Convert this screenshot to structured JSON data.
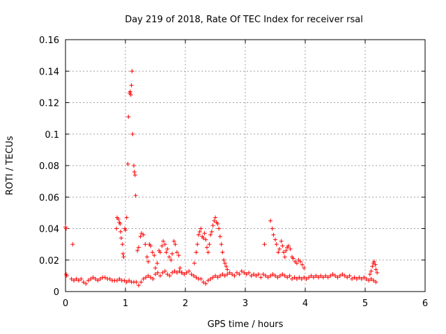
{
  "chart_data": {
    "type": "scatter",
    "title": "Day 219 of 2018, Rate Of TEC Index for receiver rsal",
    "xlabel": "GPS time / hours",
    "ylabel": "ROTI / TECUs",
    "xlim": [
      0,
      6
    ],
    "ylim": [
      0,
      0.16
    ],
    "grid": true,
    "x_ticks": [
      0,
      1,
      2,
      3,
      4,
      5,
      6
    ],
    "x_tick_labels": [
      "0",
      "1",
      "2",
      "3",
      "4",
      "5",
      "6"
    ],
    "y_ticks": [
      0,
      0.02,
      0.04,
      0.06,
      0.08,
      0.1,
      0.12,
      0.14,
      0.16
    ],
    "y_tick_labels": [
      "0",
      "0.02",
      "0.04",
      "0.06",
      "0.08",
      "0.1",
      "0.12",
      "0.14",
      "0.16"
    ],
    "marker": "plus",
    "marker_color": "#ff0000",
    "series": [
      {
        "name": "ROTI",
        "points": [
          [
            0.0,
            0.041
          ],
          [
            0.01,
            0.04
          ],
          [
            0.01,
            0.011
          ],
          [
            0.02,
            0.01
          ],
          [
            0.12,
            0.03
          ],
          [
            0.1,
            0.008
          ],
          [
            0.14,
            0.007
          ],
          [
            0.18,
            0.008
          ],
          [
            0.22,
            0.007
          ],
          [
            0.26,
            0.008
          ],
          [
            0.3,
            0.006
          ],
          [
            0.34,
            0.005
          ],
          [
            0.38,
            0.007
          ],
          [
            0.42,
            0.008
          ],
          [
            0.46,
            0.009
          ],
          [
            0.5,
            0.008
          ],
          [
            0.54,
            0.007
          ],
          [
            0.58,
            0.008
          ],
          [
            0.62,
            0.009
          ],
          [
            0.66,
            0.009
          ],
          [
            0.7,
            0.008
          ],
          [
            0.74,
            0.008
          ],
          [
            0.78,
            0.007
          ],
          [
            0.82,
            0.007
          ],
          [
            0.86,
            0.007
          ],
          [
            0.9,
            0.008
          ],
          [
            0.94,
            0.007
          ],
          [
            0.98,
            0.007
          ],
          [
            1.02,
            0.006
          ],
          [
            1.06,
            0.007
          ],
          [
            1.1,
            0.006
          ],
          [
            1.14,
            0.006
          ],
          [
            1.18,
            0.006
          ],
          [
            1.22,
            0.004
          ],
          [
            1.26,
            0.006
          ],
          [
            1.3,
            0.008
          ],
          [
            1.34,
            0.009
          ],
          [
            1.38,
            0.01
          ],
          [
            1.42,
            0.009
          ],
          [
            1.46,
            0.008
          ],
          [
            1.5,
            0.011
          ],
          [
            1.54,
            0.012
          ],
          [
            1.58,
            0.01
          ],
          [
            1.62,
            0.012
          ],
          [
            1.66,
            0.013
          ],
          [
            1.7,
            0.011
          ],
          [
            1.74,
            0.01
          ],
          [
            1.78,
            0.012
          ],
          [
            1.82,
            0.013
          ],
          [
            1.86,
            0.012
          ],
          [
            1.9,
            0.013
          ],
          [
            1.94,
            0.012
          ],
          [
            1.98,
            0.011
          ],
          [
            2.02,
            0.012
          ],
          [
            2.06,
            0.013
          ],
          [
            2.1,
            0.011
          ],
          [
            2.14,
            0.01
          ],
          [
            2.18,
            0.009
          ],
          [
            2.22,
            0.008
          ],
          [
            2.26,
            0.008
          ],
          [
            2.3,
            0.006
          ],
          [
            2.34,
            0.005
          ],
          [
            2.38,
            0.007
          ],
          [
            2.42,
            0.008
          ],
          [
            2.46,
            0.009
          ],
          [
            2.5,
            0.01
          ],
          [
            2.54,
            0.009
          ],
          [
            2.58,
            0.01
          ],
          [
            2.62,
            0.011
          ],
          [
            2.66,
            0.01
          ],
          [
            2.7,
            0.011
          ],
          [
            2.74,
            0.012
          ],
          [
            2.78,
            0.011
          ],
          [
            2.82,
            0.01
          ],
          [
            2.86,
            0.012
          ],
          [
            2.9,
            0.011
          ],
          [
            2.94,
            0.013
          ],
          [
            2.98,
            0.012
          ],
          [
            3.02,
            0.011
          ],
          [
            3.06,
            0.012
          ],
          [
            3.1,
            0.01
          ],
          [
            3.14,
            0.011
          ],
          [
            3.18,
            0.01
          ],
          [
            3.22,
            0.011
          ],
          [
            3.26,
            0.009
          ],
          [
            3.3,
            0.011
          ],
          [
            3.34,
            0.01
          ],
          [
            3.38,
            0.009
          ],
          [
            3.42,
            0.01
          ],
          [
            3.46,
            0.011
          ],
          [
            3.5,
            0.01
          ],
          [
            3.54,
            0.009
          ],
          [
            3.58,
            0.01
          ],
          [
            3.62,
            0.011
          ],
          [
            3.66,
            0.01
          ],
          [
            3.7,
            0.009
          ],
          [
            3.74,
            0.01
          ],
          [
            3.78,
            0.008
          ],
          [
            3.82,
            0.009
          ],
          [
            3.86,
            0.008
          ],
          [
            3.9,
            0.009
          ],
          [
            3.94,
            0.008
          ],
          [
            3.98,
            0.009
          ],
          [
            4.02,
            0.008
          ],
          [
            4.06,
            0.009
          ],
          [
            4.1,
            0.01
          ],
          [
            4.14,
            0.009
          ],
          [
            4.18,
            0.01
          ],
          [
            4.22,
            0.009
          ],
          [
            4.26,
            0.01
          ],
          [
            4.3,
            0.009
          ],
          [
            4.34,
            0.01
          ],
          [
            4.38,
            0.009
          ],
          [
            4.42,
            0.01
          ],
          [
            4.46,
            0.011
          ],
          [
            4.5,
            0.01
          ],
          [
            4.54,
            0.009
          ],
          [
            4.58,
            0.01
          ],
          [
            4.62,
            0.011
          ],
          [
            4.66,
            0.01
          ],
          [
            4.7,
            0.009
          ],
          [
            4.74,
            0.01
          ],
          [
            4.78,
            0.008
          ],
          [
            4.82,
            0.009
          ],
          [
            4.86,
            0.008
          ],
          [
            4.9,
            0.009
          ],
          [
            4.94,
            0.008
          ],
          [
            4.98,
            0.009
          ],
          [
            5.02,
            0.008
          ],
          [
            5.06,
            0.007
          ],
          [
            5.1,
            0.008
          ],
          [
            5.14,
            0.007
          ],
          [
            5.18,
            0.006
          ],
          [
            0.85,
            0.04
          ],
          [
            0.86,
            0.047
          ],
          [
            0.88,
            0.046
          ],
          [
            0.9,
            0.044
          ],
          [
            0.91,
            0.043
          ],
          [
            0.92,
            0.038
          ],
          [
            0.93,
            0.034
          ],
          [
            0.95,
            0.03
          ],
          [
            0.96,
            0.024
          ],
          [
            0.97,
            0.022
          ],
          [
            0.99,
            0.04
          ],
          [
            1.0,
            0.039
          ],
          [
            1.02,
            0.047
          ],
          [
            1.04,
            0.081
          ],
          [
            1.05,
            0.111
          ],
          [
            1.07,
            0.126
          ],
          [
            1.08,
            0.127
          ],
          [
            1.09,
            0.125
          ],
          [
            1.1,
            0.131
          ],
          [
            1.11,
            0.14
          ],
          [
            1.12,
            0.1
          ],
          [
            1.14,
            0.08
          ],
          [
            1.15,
            0.076
          ],
          [
            1.16,
            0.074
          ],
          [
            1.17,
            0.061
          ],
          [
            1.2,
            0.026
          ],
          [
            1.22,
            0.028
          ],
          [
            1.25,
            0.035
          ],
          [
            1.27,
            0.037
          ],
          [
            1.3,
            0.036
          ],
          [
            1.33,
            0.03
          ],
          [
            1.36,
            0.022
          ],
          [
            1.38,
            0.019
          ],
          [
            1.4,
            0.03
          ],
          [
            1.42,
            0.029
          ],
          [
            1.45,
            0.025
          ],
          [
            1.48,
            0.023
          ],
          [
            1.5,
            0.015
          ],
          [
            1.53,
            0.018
          ],
          [
            1.56,
            0.026
          ],
          [
            1.58,
            0.025
          ],
          [
            1.61,
            0.029
          ],
          [
            1.63,
            0.032
          ],
          [
            1.66,
            0.03
          ],
          [
            1.68,
            0.025
          ],
          [
            1.7,
            0.027
          ],
          [
            1.73,
            0.022
          ],
          [
            1.76,
            0.02
          ],
          [
            1.78,
            0.024
          ],
          [
            1.81,
            0.032
          ],
          [
            1.83,
            0.03
          ],
          [
            1.86,
            0.025
          ],
          [
            1.89,
            0.023
          ],
          [
            1.91,
            0.015
          ],
          [
            1.94,
            0.012
          ],
          [
            2.15,
            0.018
          ],
          [
            2.18,
            0.025
          ],
          [
            2.2,
            0.03
          ],
          [
            2.22,
            0.036
          ],
          [
            2.24,
            0.038
          ],
          [
            2.26,
            0.04
          ],
          [
            2.28,
            0.035
          ],
          [
            2.3,
            0.034
          ],
          [
            2.32,
            0.037
          ],
          [
            2.34,
            0.033
          ],
          [
            2.36,
            0.028
          ],
          [
            2.38,
            0.025
          ],
          [
            2.4,
            0.03
          ],
          [
            2.42,
            0.036
          ],
          [
            2.44,
            0.038
          ],
          [
            2.46,
            0.042
          ],
          [
            2.48,
            0.045
          ],
          [
            2.5,
            0.047
          ],
          [
            2.52,
            0.044
          ],
          [
            2.54,
            0.043
          ],
          [
            2.56,
            0.04
          ],
          [
            2.58,
            0.035
          ],
          [
            2.6,
            0.03
          ],
          [
            2.62,
            0.025
          ],
          [
            2.64,
            0.02
          ],
          [
            2.66,
            0.018
          ],
          [
            2.68,
            0.016
          ],
          [
            2.7,
            0.014
          ],
          [
            3.32,
            0.03
          ],
          [
            3.42,
            0.045
          ],
          [
            3.45,
            0.04
          ],
          [
            3.47,
            0.036
          ],
          [
            3.5,
            0.033
          ],
          [
            3.52,
            0.03
          ],
          [
            3.55,
            0.025
          ],
          [
            3.57,
            0.027
          ],
          [
            3.6,
            0.032
          ],
          [
            3.62,
            0.029
          ],
          [
            3.64,
            0.025
          ],
          [
            3.66,
            0.022
          ],
          [
            3.68,
            0.026
          ],
          [
            3.7,
            0.028
          ],
          [
            3.72,
            0.029
          ],
          [
            3.75,
            0.027
          ],
          [
            3.78,
            0.022
          ],
          [
            3.8,
            0.021
          ],
          [
            3.83,
            0.019
          ],
          [
            3.86,
            0.018
          ],
          [
            3.89,
            0.02
          ],
          [
            3.92,
            0.019
          ],
          [
            3.95,
            0.017
          ],
          [
            3.98,
            0.015
          ],
          [
            5.08,
            0.011
          ],
          [
            5.1,
            0.013
          ],
          [
            5.12,
            0.016
          ],
          [
            5.14,
            0.018
          ],
          [
            5.15,
            0.019
          ],
          [
            5.17,
            0.017
          ],
          [
            5.18,
            0.014
          ],
          [
            5.2,
            0.012
          ]
        ]
      }
    ]
  }
}
